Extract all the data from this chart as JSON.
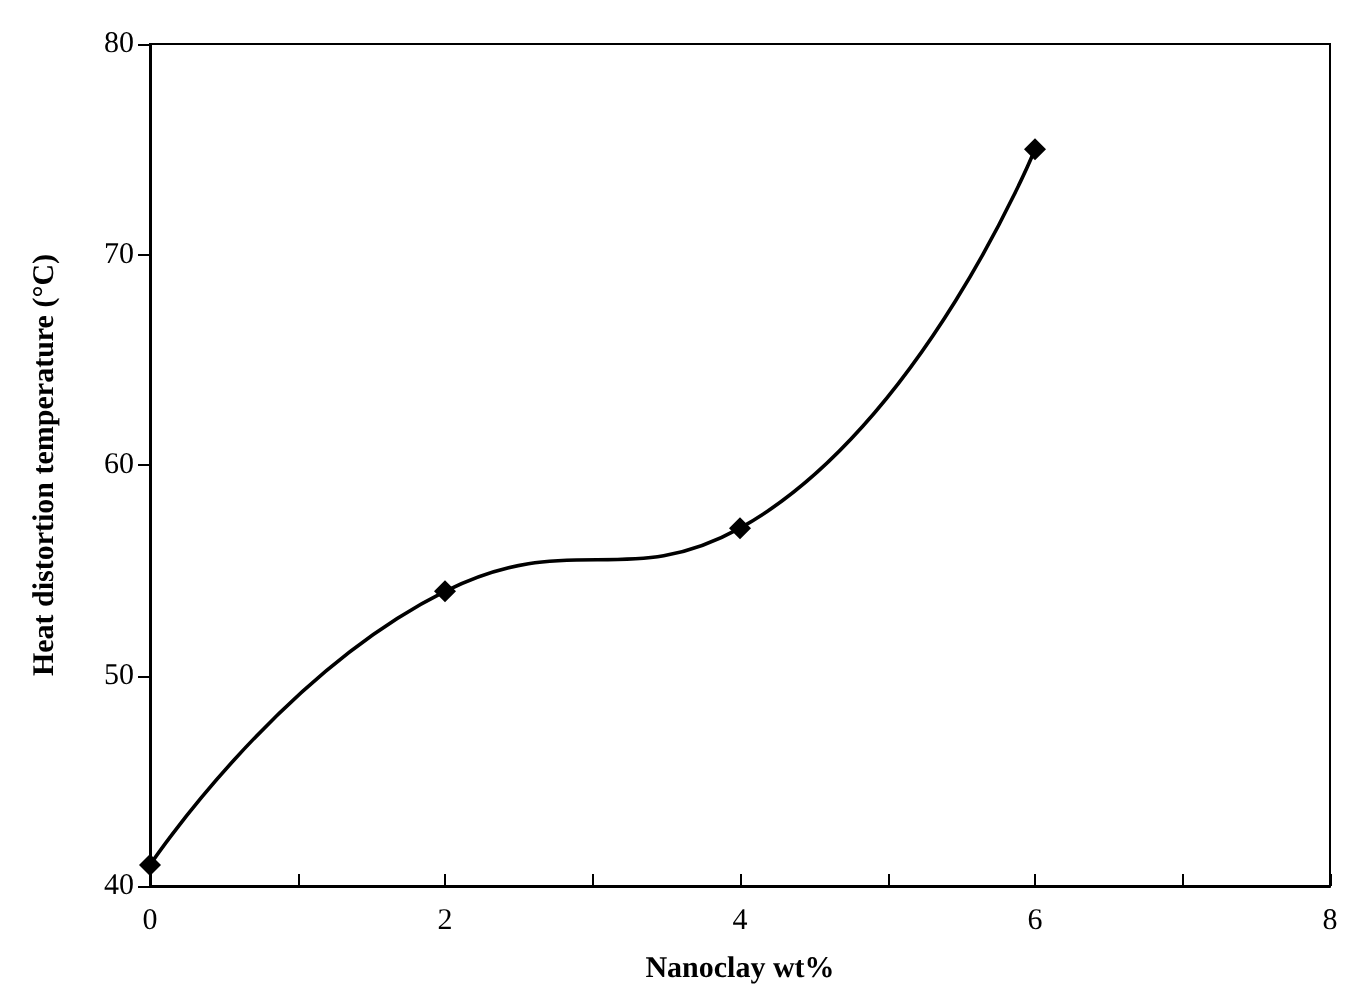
{
  "chart_data": {
    "type": "line",
    "xlabel": "Nanoclay wt%",
    "ylabel": "Heat distortion temperature (°C)",
    "x": [
      0,
      2,
      4,
      6
    ],
    "series": [
      {
        "color": "#000000",
        "values": [
          41,
          54,
          57,
          75
        ]
      }
    ],
    "xlim": [
      0,
      8
    ],
    "xticks": [
      0,
      {
        "value": 1,
        "label": null
      },
      2,
      {
        "value": 3,
        "label": null
      },
      4,
      {
        "value": 5,
        "label": null
      },
      6,
      {
        "value": 7,
        "label": null
      },
      8
    ],
    "ylim": [
      40,
      80
    ],
    "yticks": [
      40,
      50,
      60,
      70,
      80
    ],
    "marker": "diamond",
    "line_style": "solid",
    "grid": false
  }
}
